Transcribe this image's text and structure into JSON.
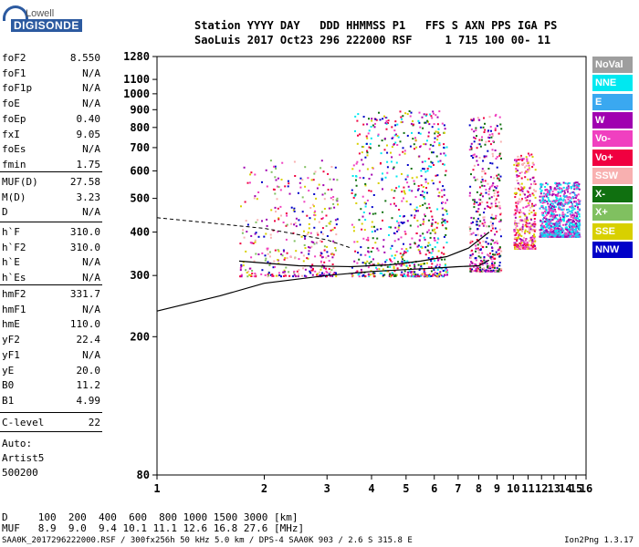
{
  "logo": {
    "top": "Lowell",
    "bottom": "DIGISONDE"
  },
  "header": {
    "line1": "Station YYYY DAY   DDD HHMMSS P1   FFS S AXN PPS IGA PS",
    "line2": "SaoLuis 2017 Oct23 296 222000 RSF     1 715 100 00- 11"
  },
  "params_group1": [
    {
      "name": "foF2",
      "value": "8.550"
    },
    {
      "name": "foF1",
      "value": "N/A"
    },
    {
      "name": "foF1p",
      "value": "N/A"
    },
    {
      "name": "foE",
      "value": "N/A"
    },
    {
      "name": "foEp",
      "value": "0.40"
    },
    {
      "name": "fxI",
      "value": "9.05"
    },
    {
      "name": "foEs",
      "value": "N/A"
    },
    {
      "name": "fmin",
      "value": "1.75"
    }
  ],
  "params_group2": [
    {
      "name": "MUF(D)",
      "value": "27.58"
    },
    {
      "name": "M(D)",
      "value": "3.23"
    },
    {
      "name": "D",
      "value": "N/A"
    }
  ],
  "params_group3": [
    {
      "name": "h`F",
      "value": "310.0"
    },
    {
      "name": "h`F2",
      "value": "310.0"
    },
    {
      "name": "h`E",
      "value": "N/A"
    },
    {
      "name": "h`Es",
      "value": "N/A"
    }
  ],
  "params_group4": [
    {
      "name": "hmF2",
      "value": "331.7"
    },
    {
      "name": "hmF1",
      "value": "N/A"
    },
    {
      "name": "hmE",
      "value": "110.0"
    },
    {
      "name": "yF2",
      "value": "22.4"
    },
    {
      "name": "yF1",
      "value": "N/A"
    },
    {
      "name": "yE",
      "value": "20.0"
    },
    {
      "name": "B0",
      "value": "11.2"
    },
    {
      "name": "B1",
      "value": "4.99"
    }
  ],
  "clevel": {
    "name": "C-level",
    "value": "22"
  },
  "auto": [
    "Auto:",
    "Artist5",
    "500200"
  ],
  "legend": [
    {
      "label": "NoVal",
      "bg": "#9e9e9e",
      "fg": "#ffffff"
    },
    {
      "label": "NNE",
      "bg": "#00e8f0",
      "fg": "#ffffff"
    },
    {
      "label": "E",
      "bg": "#3aa8f0",
      "fg": "#ffffff"
    },
    {
      "label": "W",
      "bg": "#a000b0",
      "fg": "#ffffff"
    },
    {
      "label": "Vo-",
      "bg": "#f040c0",
      "fg": "#ffffff"
    },
    {
      "label": "Vo+",
      "bg": "#f00040",
      "fg": "#ffffff"
    },
    {
      "label": "SSW",
      "bg": "#f8b0b0",
      "fg": "#ffffff"
    },
    {
      "label": "X-",
      "bg": "#107010",
      "fg": "#ffffff"
    },
    {
      "label": "X+",
      "bg": "#80c060",
      "fg": "#ffffff"
    },
    {
      "label": "SSE",
      "bg": "#d8d000",
      "fg": "#ffffff"
    },
    {
      "label": "NNW",
      "bg": "#0000c8",
      "fg": "#ffffff"
    }
  ],
  "bottom_rows": {
    "d_row": "D     100  200  400  600  800 1000 1500 3000 [km]",
    "muf_row": "MUF   8.9  9.0  9.4 10.1 11.1 12.6 16.8 27.6 [MHz]"
  },
  "footer": {
    "left": "SAA0K_2017296222000.RSF / 300fx256h 50 kHz 5.0 km / DPS-4 SAA0K 903 / 2.6 S 315.8 E",
    "right": "Ion2Png 1.3.17"
  },
  "chart_data": {
    "type": "scatter",
    "xlim": [
      1,
      16
    ],
    "ylim": [
      80,
      1280
    ],
    "x_ticks": [
      "1",
      "2",
      "3",
      "4",
      "5",
      "6",
      "7",
      "8",
      "9",
      "10",
      "11",
      "12",
      "13",
      "14",
      "15",
      "16"
    ],
    "y_ticks": [
      "80",
      "200",
      "300",
      "400",
      "500",
      "600",
      "700",
      "800",
      "900",
      "1000",
      "1100",
      "1280"
    ],
    "y_tick_values": [
      80,
      200,
      300,
      400,
      500,
      600,
      700,
      800,
      900,
      1000,
      1100,
      1280
    ],
    "axis_scale": "frequency log, height log",
    "grid": false,
    "ionogram_clusters": [
      {
        "f_start": 1.7,
        "f_end": 3.2,
        "h_low": 300,
        "h_high": 650,
        "colors": [
          "#f00040",
          "#f040c0",
          "#d8d000",
          "#a000b0",
          "#0000c8",
          "#80c060",
          "#f8b0b0"
        ]
      },
      {
        "f_start": 3.5,
        "f_end": 6.5,
        "h_low": 300,
        "h_high": 900,
        "colors": [
          "#f00040",
          "#f040c0",
          "#d8d000",
          "#a000b0",
          "#0000c8",
          "#00e8f0",
          "#107010"
        ]
      },
      {
        "f_start": 7.5,
        "f_end": 9.2,
        "h_low": 310,
        "h_high": 880,
        "colors": [
          "#f00040",
          "#f040c0",
          "#a000b0",
          "#0000c8",
          "#107010",
          "#f8b0b0"
        ]
      },
      {
        "f_start": 10.0,
        "f_end": 11.5,
        "h_low": 360,
        "h_high": 680,
        "colors": [
          "#f00040",
          "#f040c0",
          "#a000b0",
          "#d8d000",
          "#f8b0b0"
        ]
      },
      {
        "f_start": 11.8,
        "f_end": 15.3,
        "h_low": 390,
        "h_high": 560,
        "colors": [
          "#00e8f0",
          "#3aa8f0",
          "#a000b0",
          "#f040c0"
        ]
      }
    ],
    "profile_curve": [
      [
        1,
        237
      ],
      [
        1.5,
        262
      ],
      [
        2,
        285
      ],
      [
        3,
        300
      ],
      [
        4,
        308
      ],
      [
        5,
        312
      ],
      [
        6,
        315
      ],
      [
        7,
        318
      ],
      [
        8,
        320
      ],
      [
        8.55,
        332
      ]
    ],
    "trace_curve": [
      [
        1.7,
        330
      ],
      [
        2.5,
        320
      ],
      [
        3.5,
        318
      ],
      [
        4.5,
        322
      ],
      [
        5.5,
        330
      ],
      [
        6.5,
        340
      ],
      [
        7.5,
        360
      ],
      [
        8.55,
        400
      ]
    ],
    "dashed_curve": [
      [
        1,
        440
      ],
      [
        2,
        410
      ],
      [
        3,
        380
      ],
      [
        3.5,
        360
      ]
    ]
  }
}
